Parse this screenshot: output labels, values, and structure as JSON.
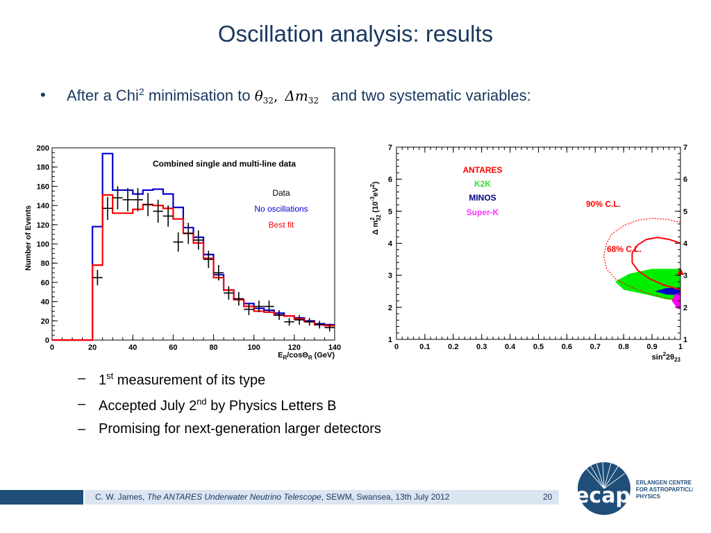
{
  "slide": {
    "title": "Oscillation analysis: results",
    "bullet": {
      "text_before": "After a Chi",
      "sup": "2",
      "text_middle": " minimisation to ",
      "math_theta": "θ",
      "math_theta_sub": "32",
      "math_comma": ",",
      "math_delta_m": "Δm",
      "math_delta_m_sub": "32",
      "text_after": "and two systematic variables:"
    },
    "subbullets": [
      {
        "dash": "–",
        "pre": "1",
        "sup": "st",
        "post": " measurement of its type"
      },
      {
        "dash": "–",
        "pre": "Accepted July 2",
        "sup": "nd",
        "post": " by Physics Letters B"
      },
      {
        "dash": "–",
        "pre": "Promising for next-generation larger detectors",
        "sup": "",
        "post": ""
      }
    ],
    "footer": {
      "author": "C. W. James, ",
      "talk_title": "The ANTARES Underwater Neutrino Telescope",
      "venue": ", SEWM, Swansea, 13th July 2012",
      "page": "20"
    },
    "logo": {
      "text": "ecap",
      "line1": "ERLANGEN CENTRE",
      "line2": "FOR ASTROPARTICLE",
      "line3": "PHYSICS",
      "color": "#1f4e79"
    }
  },
  "chart_data": [
    {
      "type": "histogram",
      "title": "Combined single and multi-line data",
      "xlabel": "E_R/cosΘ_R (GeV)",
      "ylabel": "Number of Events",
      "xlim": [
        0,
        140
      ],
      "ylim": [
        0,
        200
      ],
      "xticks": [
        0,
        20,
        40,
        60,
        80,
        100,
        120,
        140
      ],
      "yticks": [
        0,
        20,
        40,
        60,
        80,
        100,
        120,
        140,
        160,
        180,
        200
      ],
      "legend": [
        {
          "label": "Data",
          "color": "#000000"
        },
        {
          "label": "No oscillations",
          "color": "#0000cc"
        },
        {
          "label": "Best fit",
          "color": "#ff0000"
        }
      ],
      "bin_edges": [
        0,
        20,
        25,
        30,
        35,
        40,
        45,
        50,
        55,
        60,
        65,
        70,
        75,
        80,
        85,
        90,
        95,
        100,
        105,
        110,
        115,
        120,
        125,
        130,
        135,
        140
      ],
      "series": [
        {
          "name": "No oscillations",
          "color": "#0000cc",
          "values": [
            0,
            118,
            194,
            156,
            156,
            152,
            156,
            157,
            152,
            138,
            117,
            107,
            89,
            68,
            52,
            42,
            38,
            33,
            31,
            28,
            25,
            23,
            20,
            17,
            16
          ]
        },
        {
          "name": "Best fit",
          "color": "#ff0000",
          "values": [
            0,
            78,
            151,
            132,
            132,
            136,
            141,
            140,
            137,
            126,
            111,
            101,
            85,
            65,
            52,
            42,
            35,
            30,
            29,
            26,
            25,
            22,
            19,
            16,
            15
          ]
        }
      ],
      "data_points": [
        {
          "x": 22.5,
          "y": 65,
          "err": 8
        },
        {
          "x": 27.5,
          "y": 137,
          "err": 12
        },
        {
          "x": 32.5,
          "y": 148,
          "err": 12
        },
        {
          "x": 37.5,
          "y": 146,
          "err": 12
        },
        {
          "x": 42.5,
          "y": 146,
          "err": 12
        },
        {
          "x": 47.5,
          "y": 141,
          "err": 12
        },
        {
          "x": 52.5,
          "y": 134,
          "err": 12
        },
        {
          "x": 57.5,
          "y": 129,
          "err": 11
        },
        {
          "x": 62.5,
          "y": 102,
          "err": 10
        },
        {
          "x": 67.5,
          "y": 111,
          "err": 11
        },
        {
          "x": 72.5,
          "y": 104,
          "err": 10
        },
        {
          "x": 77.5,
          "y": 84,
          "err": 9
        },
        {
          "x": 82.5,
          "y": 70,
          "err": 8
        },
        {
          "x": 87.5,
          "y": 49,
          "err": 7
        },
        {
          "x": 92.5,
          "y": 43,
          "err": 7
        },
        {
          "x": 97.5,
          "y": 32,
          "err": 6
        },
        {
          "x": 102.5,
          "y": 35,
          "err": 6
        },
        {
          "x": 107.5,
          "y": 35,
          "err": 6
        },
        {
          "x": 112.5,
          "y": 26,
          "err": 5
        },
        {
          "x": 117.5,
          "y": 19,
          "err": 4
        },
        {
          "x": 122.5,
          "y": 21,
          "err": 5
        },
        {
          "x": 127.5,
          "y": 19,
          "err": 4
        },
        {
          "x": 132.5,
          "y": 16,
          "err": 4
        },
        {
          "x": 137.5,
          "y": 13,
          "err": 4
        }
      ]
    },
    {
      "type": "contour",
      "xlabel": "sin²2θ₂₃",
      "ylabel": "Δ m²₃₂ (10⁻³eV²)",
      "xlim": [
        0,
        1
      ],
      "ylim": [
        1,
        7
      ],
      "xticks": [
        0,
        0.1,
        0.2,
        0.3,
        0.4,
        0.5,
        0.6,
        0.7,
        0.8,
        0.9,
        1
      ],
      "yticks": [
        1,
        2,
        3,
        4,
        5,
        6,
        7
      ],
      "legend": [
        {
          "label": "ANTARES",
          "color": "#ff0000"
        },
        {
          "label": "K2K",
          "color": "#00cc00"
        },
        {
          "label": "MINOS",
          "color": "#000080"
        },
        {
          "label": "Super-K",
          "color": "#ff00ff"
        }
      ],
      "annotations": [
        {
          "label": "90% C.L.",
          "color": "#ff0000"
        },
        {
          "label": "68% C.L.",
          "color": "#ff0000"
        }
      ],
      "best_fit": {
        "x": 1.0,
        "y": 3.1
      },
      "contours": [
        {
          "name": "90% C.L.",
          "style": "dotted",
          "color": "#ff0000",
          "points": [
            [
              1.0,
              4.65
            ],
            [
              0.95,
              4.75
            ],
            [
              0.9,
              4.78
            ],
            [
              0.85,
              4.72
            ],
            [
              0.8,
              4.55
            ],
            [
              0.76,
              4.3
            ],
            [
              0.74,
              4.0
            ],
            [
              0.73,
              3.6
            ],
            [
              0.74,
              3.2
            ],
            [
              0.77,
              2.9
            ],
            [
              0.82,
              2.65
            ],
            [
              0.88,
              2.45
            ],
            [
              0.94,
              2.3
            ],
            [
              1.0,
              2.2
            ]
          ]
        },
        {
          "name": "68% C.L.",
          "style": "solid",
          "color": "#ff0000",
          "points": [
            [
              1.0,
              4.0
            ],
            [
              0.96,
              4.12
            ],
            [
              0.92,
              4.18
            ],
            [
              0.88,
              4.12
            ],
            [
              0.85,
              3.95
            ],
            [
              0.83,
              3.7
            ],
            [
              0.83,
              3.4
            ],
            [
              0.85,
              3.15
            ],
            [
              0.89,
              2.9
            ],
            [
              0.94,
              2.7
            ],
            [
              1.0,
              2.55
            ]
          ]
        },
        {
          "name": "K2K",
          "style": "fill",
          "color": "#00ee00",
          "points": [
            [
              1.0,
              3.2
            ],
            [
              0.9,
              3.2
            ],
            [
              0.82,
              3.05
            ],
            [
              0.77,
              2.8
            ],
            [
              0.8,
              2.55
            ],
            [
              0.88,
              2.4
            ],
            [
              0.95,
              2.25
            ],
            [
              1.0,
              2.2
            ]
          ]
        },
        {
          "name": "MINOS",
          "style": "fill",
          "color": "#0000cc",
          "points": [
            [
              1.0,
              2.62
            ],
            [
              0.95,
              2.6
            ],
            [
              0.91,
              2.5
            ],
            [
              0.95,
              2.4
            ],
            [
              1.0,
              2.38
            ]
          ]
        },
        {
          "name": "Super-K",
          "style": "fill",
          "color": "#ff00ff",
          "points": [
            [
              1.0,
              2.45
            ],
            [
              0.98,
              2.4
            ],
            [
              0.97,
              2.2
            ],
            [
              0.99,
              1.95
            ],
            [
              1.0,
              1.95
            ]
          ]
        }
      ]
    }
  ]
}
